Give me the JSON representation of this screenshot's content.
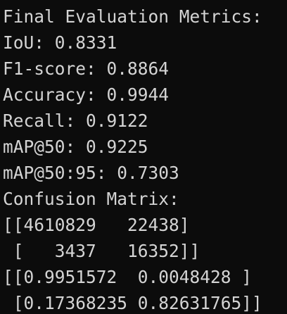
{
  "terminal": {
    "lines": [
      "Final Evaluation Metrics:",
      "IoU: 0.8331",
      "F1-score: 0.8864",
      "Accuracy: 0.9944",
      "Recall: 0.9122",
      "mAP@50: 0.9225",
      "mAP@50:95: 0.7303",
      "Confusion Matrix:",
      "[[4610829   22438]",
      " [   3437   16352]]",
      "[[0.9951572  0.0048428 ]",
      " [0.17368235 0.82631765]]"
    ]
  },
  "colors": {
    "background": "#0c0c0c",
    "text": "#d4d4d4"
  }
}
